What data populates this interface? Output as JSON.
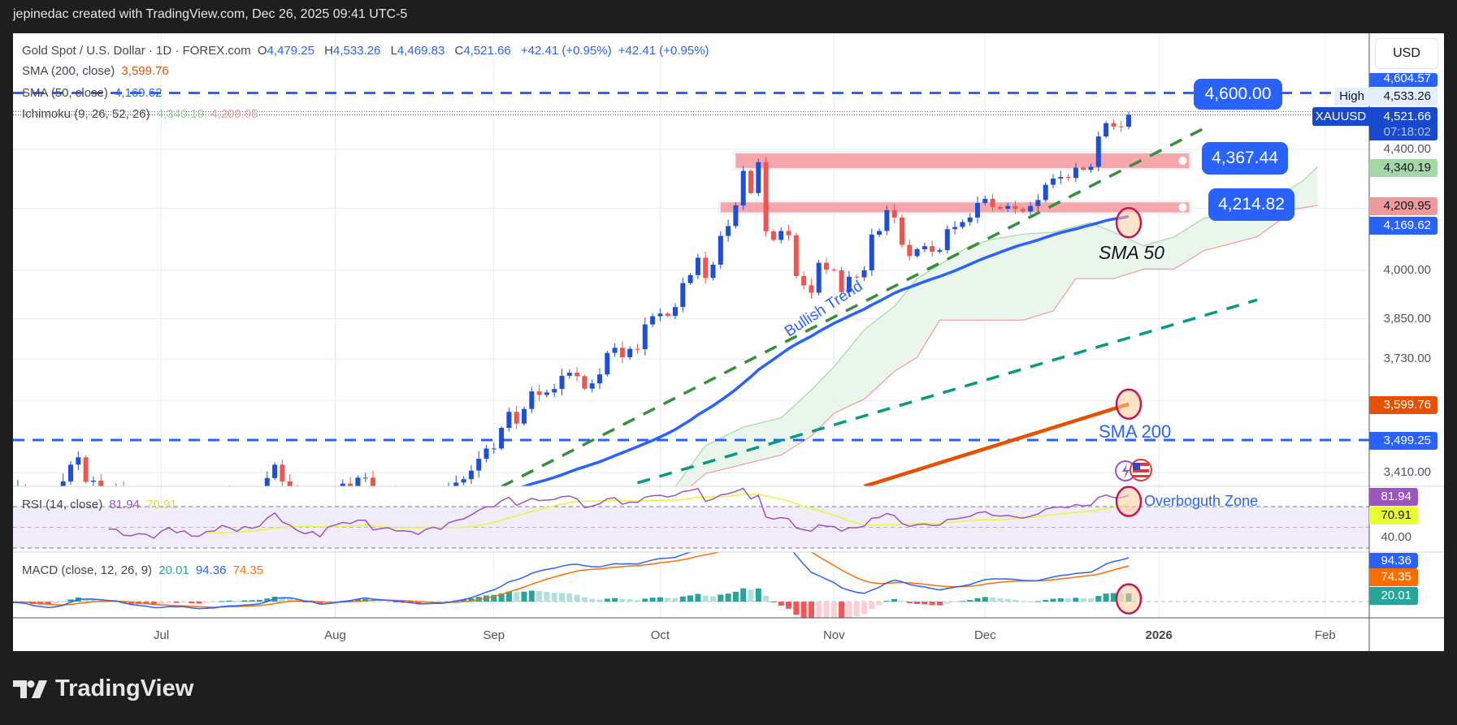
{
  "header": {
    "attribution": "jepinedac created with TradingView.com, Dec 26, 2025 09:41 UTC-5"
  },
  "legend": {
    "symbol": "Gold Spot / U.S. Dollar · 1D · FOREX.com",
    "o_label": "O",
    "o": "4,479.25",
    "h_label": "H",
    "h": "4,533.26",
    "l_label": "L",
    "l": "4,469.83",
    "c_label": "C",
    "c": "4,521.66",
    "change": "+42.41 (+0.95%)",
    "change2": "+42.41 (+0.95%)",
    "sma200_label": "SMA (200, close)",
    "sma200_value": "3,599.76",
    "sma50_label": "SMA (50, close)",
    "sma50_value": "4,169.62",
    "ichimoku_label": "Ichimoku (9, 26, 52, 26)",
    "ichimoku_a": "4,340.19",
    "ichimoku_b": "4,209.95"
  },
  "rsi_legend": {
    "label": "RSI (14, close)",
    "value": "81.94",
    "ma": "70.91"
  },
  "macd_legend": {
    "label": "MACD (close, 12, 26, 9)",
    "hist": "20.01",
    "macd": "94.36",
    "signal": "74.35"
  },
  "price_axis": {
    "currency": "USD",
    "high_price": "4,604.57",
    "high_label": "High",
    "high_value": "4,533.26",
    "symbol_tag": "XAUUSD",
    "last_price": "4,521.66",
    "countdown": "07:18:02",
    "tick_4400": "4,400.00",
    "ichimoku_a": "4,340.19",
    "ichimoku_b": "4,209.95",
    "sma50": "4,169.62",
    "tick_4000": "4,000.00",
    "tick_3850": "3,850.00",
    "tick_3730": "3,730.00",
    "sma200": "3,599.76",
    "level_line": "3,499.25",
    "tick_3410": "3,410.00",
    "rsi_value": "81.94",
    "rsi_ma": "70.91",
    "rsi_tick": "40.00",
    "macd": "94.36",
    "signal": "74.35",
    "hist": "20.01"
  },
  "annotations": {
    "level_4600": "4,600.00",
    "zone_upper": "4,367.44",
    "zone_lower": "4,214.82",
    "bullish_trend": "Bullish Trend",
    "sma50": "SMA 50",
    "sma200": "SMA 200",
    "overbought": "Overboguth Zone"
  },
  "footer": {
    "brand": "TradingView"
  },
  "chart_data": {
    "type": "candlestick",
    "symbol": "XAUUSD",
    "interval": "1D",
    "y_scale": "log",
    "grid": true,
    "last_bar": {
      "open": 4479.25,
      "high": 4533.26,
      "low": 4469.83,
      "close": 4521.66
    },
    "close": [
      3380,
      3353,
      3373,
      3352,
      3310,
      3325,
      3322,
      3354,
      3387,
      3432,
      3452,
      3386,
      3389,
      3369,
      3368,
      3368,
      3325,
      3322,
      3333,
      3328,
      3303,
      3338,
      3357,
      3326,
      3336,
      3302,
      3301,
      3324,
      3326,
      3355,
      3343,
      3324,
      3348,
      3339,
      3350,
      3396,
      3432,
      3387,
      3370,
      3336,
      3315,
      3327,
      3290,
      3348,
      3362,
      3381,
      3374,
      3397,
      3397,
      3341,
      3348,
      3355,
      3335,
      3336,
      3332,
      3315,
      3339,
      3349,
      3339,
      3371,
      3384,
      3393,
      3416,
      3448,
      3476,
      3476,
      3533,
      3578,
      3545,
      3586,
      3636,
      3626,
      3633,
      3643,
      3681,
      3690,
      3680,
      3644,
      3659,
      3685,
      3748,
      3763,
      3735,
      3760,
      3759,
      3833,
      3858,
      3866,
      3859,
      3886,
      3960,
      3985,
      4040,
      3976,
      4018,
      4110,
      4142,
      4210,
      4326,
      4251,
      4356,
      4125,
      4097,
      4126,
      4112,
      3982,
      3953,
      3930,
      4024,
      4002,
      4000,
      3932,
      3980,
      3978,
      4000,
      4114,
      4126,
      4194,
      4170,
      4081,
      4045,
      4067,
      4077,
      4059,
      4064,
      4132,
      4139,
      4155,
      4170,
      4218,
      4232,
      4205,
      4199,
      4208,
      4198,
      4190,
      4208,
      4228,
      4279,
      4300,
      4305,
      4302,
      4337,
      4330,
      4340,
      4445,
      4492,
      4480,
      4479.25,
      4521.66
    ],
    "x_ticks": [
      {
        "label": "Jul",
        "date": "2025-07-01"
      },
      {
        "label": "Aug",
        "date": "2025-08-01"
      },
      {
        "label": "Sep",
        "date": "2025-09-01"
      },
      {
        "label": "Oct",
        "date": "2025-10-01"
      },
      {
        "label": "Nov",
        "date": "2025-11-03"
      },
      {
        "label": "Dec",
        "date": "2025-12-01"
      },
      {
        "label": "2026",
        "date": "2026-01-01"
      },
      {
        "label": "Feb",
        "date": "2026-02-02"
      }
    ],
    "y_ticks": [
      4400,
      4000,
      3850,
      3730,
      3410
    ],
    "sma50": {
      "period": 50,
      "last": 4169.62
    },
    "sma200": {
      "period": 200,
      "points": [
        [
          "2025-11-07",
          3374
        ],
        [
          "2025-12-26",
          3599.76
        ]
      ]
    },
    "ichimoku": {
      "span_a": [
        [
          "2025-10-03",
          3373
        ],
        [
          "2025-10-09",
          3484
        ],
        [
          "2025-10-16",
          3535
        ],
        [
          "2025-10-23",
          3561
        ],
        [
          "2025-10-29",
          3640
        ],
        [
          "2025-11-03",
          3707
        ],
        [
          "2025-11-07",
          3817
        ],
        [
          "2025-11-13",
          3888
        ],
        [
          "2025-11-18",
          3974
        ],
        [
          "2025-11-21",
          4018
        ],
        [
          "2025-11-27",
          4078
        ],
        [
          "2025-12-02",
          4099
        ],
        [
          "2025-12-08",
          4116
        ],
        [
          "2025-12-12",
          4122
        ],
        [
          "2025-12-19",
          4153
        ],
        [
          "2025-12-24",
          4122
        ],
        [
          "2025-12-30",
          4078
        ],
        [
          "2026-01-05",
          4107
        ],
        [
          "2026-01-09",
          4168
        ],
        [
          "2026-01-20",
          4198
        ],
        [
          "2026-01-28",
          4291
        ],
        [
          "2026-01-30",
          4340.19
        ]
      ],
      "span_b": [
        [
          "2025-10-07",
          3373
        ],
        [
          "2025-10-09",
          3408
        ],
        [
          "2025-10-16",
          3433
        ],
        [
          "2025-10-23",
          3458
        ],
        [
          "2025-10-29",
          3510
        ],
        [
          "2025-11-03",
          3574
        ],
        [
          "2025-11-07",
          3614
        ],
        [
          "2025-11-13",
          3694
        ],
        [
          "2025-11-18",
          3735
        ],
        [
          "2025-11-21",
          3846
        ],
        [
          "2025-12-08",
          3846
        ],
        [
          "2025-12-12",
          3874
        ],
        [
          "2025-12-17",
          3974
        ],
        [
          "2025-12-24",
          3974
        ],
        [
          "2025-12-30",
          4004
        ],
        [
          "2026-01-05",
          4004
        ],
        [
          "2026-01-09",
          4063
        ],
        [
          "2026-01-20",
          4107
        ],
        [
          "2026-01-27",
          4198
        ],
        [
          "2026-01-30",
          4209.95
        ]
      ]
    },
    "horizontal_lines": [
      4600,
      3499.25
    ],
    "zones": [
      {
        "label": "4,367.44",
        "from": "2025-10-15",
        "to": "2026-01-07",
        "top": 4386,
        "bottom": 4336
      },
      {
        "label": "4,214.82",
        "from": "2025-10-13",
        "to": "2026-01-07",
        "top": 4220,
        "bottom": 4187
      }
    ],
    "trend_lines": [
      {
        "name": "Bullish Trend",
        "color": "#388e3c",
        "from": [
          "2025-09-02",
          3373
        ],
        "to": [
          "2026-01-09",
          4474
        ]
      },
      {
        "color": "#089981",
        "from": [
          "2025-09-26",
          3383
        ],
        "to": [
          "2026-01-20",
          3908
        ]
      }
    ],
    "highlight_circles": [
      {
        "pane": "price",
        "date": "2025-12-26",
        "value": 4153
      },
      {
        "pane": "price",
        "date": "2025-12-26",
        "value": 3599.76
      },
      {
        "pane": "rsi",
        "date": "2025-12-26",
        "value": 75
      },
      {
        "pane": "macd",
        "date": "2025-12-26",
        "value": 6
      }
    ],
    "rsi": {
      "period": 14,
      "ma_period": 14,
      "upper": 70,
      "middle": 50,
      "lower": 30
    },
    "macd": {
      "fast": 12,
      "slow": 26,
      "signal": 9
    },
    "colors": {
      "up": "#1e4fd8",
      "down": "#f05350",
      "sma50": "#2962ff",
      "sma200": "#e65100",
      "span_a": "#a5d6a7",
      "span_b": "#ef9a9a",
      "cloud": "#e8f5e9",
      "zone": "#f7a1a6",
      "rsi": "#9c54c0",
      "rsi_ma": "#e8f542",
      "macd": "#2962ff",
      "signal": "#ff6d00",
      "hist_up": "#26a69a",
      "hist_up_weak": "#b2dfdb",
      "hist_down": "#ff5252",
      "hist_down_weak": "#ffcdd2",
      "circle": "#c2185b"
    }
  }
}
